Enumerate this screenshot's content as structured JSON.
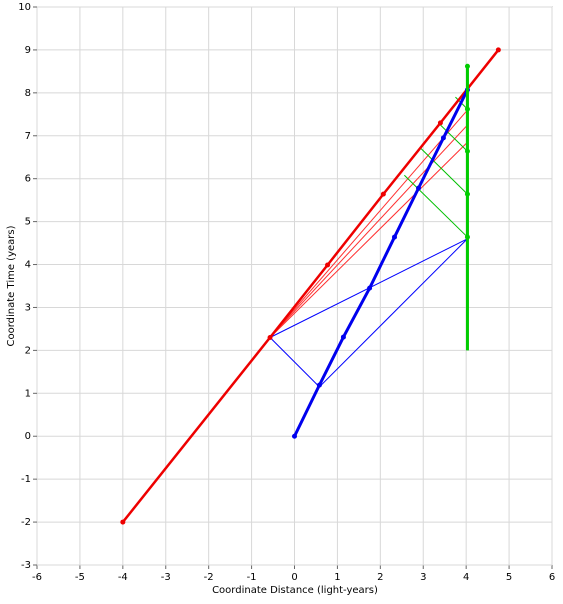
{
  "chart_data": {
    "type": "line",
    "x_label": "Coordinate Distance (light-years)",
    "y_label": "Coordinate Time (years)",
    "xlim": [
      -6,
      6
    ],
    "ylim": [
      -3,
      10
    ],
    "xticks": [
      -6,
      -5,
      -4,
      -3,
      -2,
      -1,
      0,
      1,
      2,
      3,
      4,
      5,
      6
    ],
    "yticks": [
      -3,
      -2,
      -1,
      0,
      1,
      2,
      3,
      4,
      5,
      6,
      7,
      8,
      9,
      10
    ],
    "grid": true,
    "series": [
      {
        "color": "#0000ff",
        "width": 1,
        "markers": false,
        "x": [
          -0.57,
          0.58,
          4.03
        ],
        "values": [
          2.3,
          1.15,
          4.6
        ]
      },
      {
        "color": "#0000ff",
        "width": 1,
        "markers": false,
        "x": [
          -0.57,
          4.03
        ],
        "values": [
          2.3,
          4.6
        ]
      },
      {
        "color": "#ff3030",
        "width": 1,
        "markers": false,
        "x": [
          -0.57,
          4.03
        ],
        "values": [
          2.3,
          7.6
        ]
      },
      {
        "color": "#ff3030",
        "width": 1,
        "markers": false,
        "x": [
          -0.57,
          4.03
        ],
        "values": [
          2.3,
          7.25
        ]
      },
      {
        "color": "#ff3030",
        "width": 1,
        "markers": false,
        "x": [
          -0.57,
          4.03
        ],
        "values": [
          2.3,
          6.85
        ]
      },
      {
        "color": "#00c000",
        "width": 1,
        "markers": false,
        "x": [
          4.03,
          2.56
        ],
        "values": [
          4.64,
          6.08
        ]
      },
      {
        "color": "#00c000",
        "width": 1,
        "markers": false,
        "x": [
          4.03,
          2.95
        ],
        "values": [
          5.64,
          6.7
        ]
      },
      {
        "color": "#00c000",
        "width": 1,
        "markers": false,
        "x": [
          4.03,
          3.35
        ],
        "values": [
          6.64,
          7.3
        ]
      },
      {
        "color": "#00c000",
        "width": 1,
        "markers": false,
        "x": [
          4.03,
          3.75
        ],
        "values": [
          7.62,
          7.9
        ]
      },
      {
        "color": "#ee0000",
        "width": 2.5,
        "markers": true,
        "x": [
          -4,
          -0.57,
          0.77,
          2.07,
          3.4,
          4.75
        ],
        "values": [
          -2,
          2.3,
          3.99,
          5.64,
          7.3,
          9.0
        ]
      },
      {
        "color": "#0000ee",
        "width": 3,
        "markers": true,
        "x": [
          0,
          0.58,
          1.14,
          1.75,
          2.33,
          2.89,
          3.47,
          4.03
        ],
        "values": [
          0,
          1.19,
          2.31,
          3.45,
          4.64,
          5.78,
          6.95,
          8.07
        ]
      },
      {
        "color": "#00cc00",
        "width": 3,
        "markers": false,
        "x": [
          4.03,
          4.03
        ],
        "values": [
          2.0,
          8.62
        ]
      },
      {
        "color": "#00cc00",
        "width": 0,
        "markers": true,
        "x": [
          4.03,
          4.03,
          4.03,
          4.03,
          4.03
        ],
        "values": [
          8.62,
          7.62,
          6.64,
          5.64,
          4.64
        ]
      }
    ]
  }
}
